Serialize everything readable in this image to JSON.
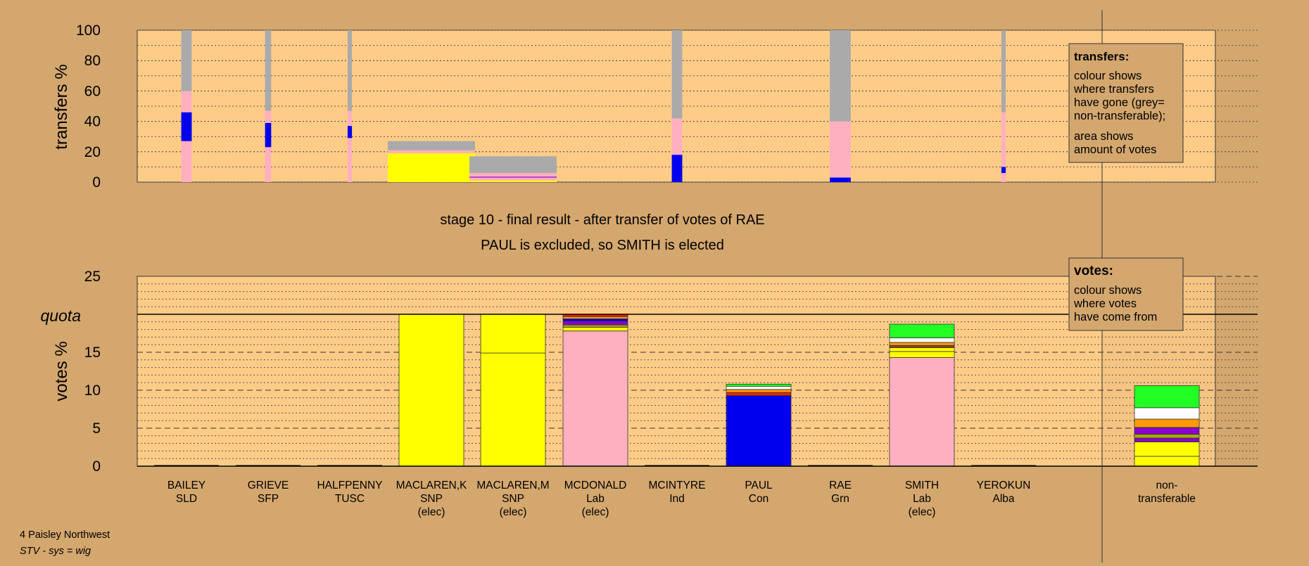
{
  "colors": {
    "background": "#d4a76e",
    "panel": "#ffcc88",
    "grey": "#aaaaaa",
    "pink": "#ffb0c0",
    "blue": "#0000ee",
    "yellow": "#ffff00",
    "green": "#22ff22",
    "white": "#ffffff",
    "orange": "#ff9900",
    "purple": "#8800cc",
    "olive": "#aaaa00",
    "red": "#ee2200",
    "brown": "#8b4513"
  },
  "header": {
    "stage_title": "stage 10 - final result - after transfer of votes of RAE",
    "stage_subtitle": "PAUL is excluded, so SMITH is elected"
  },
  "footer": {
    "ward": "4 Paisley Northwest",
    "system": "STV - sys = wig"
  },
  "legend_transfers": {
    "title": "transfers:",
    "lines1": [
      "colour shows",
      "where transfers",
      "have gone (grey=",
      "non-transferable);"
    ],
    "lines2": [
      "area shows",
      "amount of votes"
    ]
  },
  "legend_votes": {
    "title": "votes:",
    "lines": [
      "colour shows",
      "where votes",
      "have come from"
    ]
  },
  "candidates": [
    {
      "name": "BAILEY",
      "party": "SLD",
      "status": ""
    },
    {
      "name": "GRIEVE",
      "party": "SFP",
      "status": ""
    },
    {
      "name": "HALFPENNY",
      "party": "TUSC",
      "status": ""
    },
    {
      "name": "MACLAREN,K",
      "party": "SNP",
      "status": "(elec)"
    },
    {
      "name": "MACLAREN,M",
      "party": "SNP",
      "status": "(elec)"
    },
    {
      "name": "MCDONALD",
      "party": "Lab",
      "status": "(elec)"
    },
    {
      "name": "MCINTYRE",
      "party": "Ind",
      "status": ""
    },
    {
      "name": "PAUL",
      "party": "Con",
      "status": ""
    },
    {
      "name": "RAE",
      "party": "Grn",
      "status": ""
    },
    {
      "name": "SMITH",
      "party": "Lab",
      "status": "(elec)"
    },
    {
      "name": "YEROKUN",
      "party": "Alba",
      "status": ""
    },
    {
      "name": "non-",
      "party": "transferable",
      "status": ""
    }
  ],
  "chart_data": [
    {
      "type": "bar",
      "subtype": "stacked-transfer",
      "ylabel": "transfers %",
      "ylim": [
        0,
        100
      ],
      "yticks": [
        0,
        20,
        40,
        60,
        80,
        100
      ],
      "grid": true,
      "legend_position": "top-right",
      "bars": [
        {
          "candidate": "BAILEY",
          "width_share": 0.012,
          "segments": [
            {
              "color": "pink",
              "from": 0,
              "to": 27
            },
            {
              "color": "blue",
              "from": 27,
              "to": 46
            },
            {
              "color": "pink",
              "from": 46,
              "to": 60
            },
            {
              "color": "grey",
              "from": 60,
              "to": 100
            }
          ]
        },
        {
          "candidate": "GRIEVE",
          "width_share": 0.007,
          "segments": [
            {
              "color": "pink",
              "from": 0,
              "to": 23
            },
            {
              "color": "blue",
              "from": 23,
              "to": 39
            },
            {
              "color": "pink",
              "from": 39,
              "to": 47
            },
            {
              "color": "grey",
              "from": 47,
              "to": 100
            }
          ]
        },
        {
          "candidate": "HALFPENNY",
          "width_share": 0.005,
          "segments": [
            {
              "color": "pink",
              "from": 0,
              "to": 29
            },
            {
              "color": "blue",
              "from": 29,
              "to": 37
            },
            {
              "color": "pink",
              "from": 37,
              "to": 47
            },
            {
              "color": "grey",
              "from": 47,
              "to": 100
            }
          ]
        },
        {
          "candidate": "MACLAREN,K",
          "width_share": 0.1,
          "segments": [
            {
              "color": "yellow",
              "from": 0,
              "to": 19
            },
            {
              "color": "pink",
              "from": 19,
              "to": 21
            },
            {
              "color": "grey",
              "from": 21,
              "to": 27
            }
          ]
        },
        {
          "candidate": "MACLAREN,M",
          "width_share": 0.1,
          "segments": [
            {
              "color": "yellow",
              "from": 0,
              "to": 1
            },
            {
              "color": "pink",
              "from": 1,
              "to": 3
            },
            {
              "color": "purple",
              "from": 3,
              "to": 3.6
            },
            {
              "color": "pink",
              "from": 3.6,
              "to": 6
            },
            {
              "color": "grey",
              "from": 6,
              "to": 17
            }
          ]
        },
        {
          "candidate": "MCINTYRE",
          "width_share": 0.012,
          "segments": [
            {
              "color": "blue",
              "from": 0,
              "to": 18
            },
            {
              "color": "pink",
              "from": 18,
              "to": 42
            },
            {
              "color": "grey",
              "from": 42,
              "to": 100
            }
          ]
        },
        {
          "candidate": "RAE",
          "width_share": 0.024,
          "segments": [
            {
              "color": "blue",
              "from": 0,
              "to": 3
            },
            {
              "color": "pink",
              "from": 3,
              "to": 40
            },
            {
              "color": "grey",
              "from": 40,
              "to": 100
            }
          ]
        },
        {
          "candidate": "YEROKUN",
          "width_share": 0.005,
          "segments": [
            {
              "color": "pink",
              "from": 0,
              "to": 6
            },
            {
              "color": "blue",
              "from": 6,
              "to": 10
            },
            {
              "color": "pink",
              "from": 10,
              "to": 46
            },
            {
              "color": "grey",
              "from": 46,
              "to": 100
            }
          ]
        }
      ]
    },
    {
      "type": "bar",
      "subtype": "stacked-votes",
      "ylabel": "votes %",
      "ylim": [
        0,
        25
      ],
      "yticks": [
        0,
        5,
        10,
        15,
        20,
        25
      ],
      "quota": 20,
      "quota_label": "quota",
      "grid": true,
      "legend_position": "top-right",
      "bars": [
        {
          "candidate": "BAILEY",
          "segments": []
        },
        {
          "candidate": "GRIEVE",
          "segments": []
        },
        {
          "candidate": "HALFPENNY",
          "segments": []
        },
        {
          "candidate": "MACLAREN,K",
          "segments": [
            {
              "color": "yellow",
              "from": 0,
              "to": 20
            }
          ]
        },
        {
          "candidate": "MACLAREN,M",
          "segments": [
            {
              "color": "yellow",
              "from": 0,
              "to": 14.9
            },
            {
              "color": "yellow",
              "from": 14.9,
              "to": 20
            }
          ]
        },
        {
          "candidate": "MCDONALD",
          "segments": [
            {
              "color": "pink",
              "from": 0,
              "to": 17.8
            },
            {
              "color": "yellow",
              "from": 17.8,
              "to": 18.3
            },
            {
              "color": "olive",
              "from": 18.3,
              "to": 18.6
            },
            {
              "color": "purple",
              "from": 18.6,
              "to": 19.1
            },
            {
              "color": "blue",
              "from": 19.1,
              "to": 19.4
            },
            {
              "color": "orange",
              "from": 19.4,
              "to": 19.7
            },
            {
              "color": "red",
              "from": 19.7,
              "to": 20
            }
          ]
        },
        {
          "candidate": "MCINTYRE",
          "segments": []
        },
        {
          "candidate": "PAUL",
          "segments": [
            {
              "color": "blue",
              "from": 0,
              "to": 9.3
            },
            {
              "color": "red",
              "from": 9.3,
              "to": 9.7
            },
            {
              "color": "orange",
              "from": 9.7,
              "to": 10.1
            },
            {
              "color": "white",
              "from": 10.1,
              "to": 10.5
            },
            {
              "color": "green",
              "from": 10.5,
              "to": 10.8
            }
          ]
        },
        {
          "candidate": "RAE",
          "segments": []
        },
        {
          "candidate": "SMITH",
          "segments": [
            {
              "color": "pink",
              "from": 0,
              "to": 14.3
            },
            {
              "color": "yellow",
              "from": 14.3,
              "to": 15.1
            },
            {
              "color": "yellow",
              "from": 15.1,
              "to": 15.6
            },
            {
              "color": "brown",
              "from": 15.6,
              "to": 15.9
            },
            {
              "color": "orange",
              "from": 15.9,
              "to": 16.3
            },
            {
              "color": "white",
              "from": 16.3,
              "to": 16.9
            },
            {
              "color": "green",
              "from": 16.9,
              "to": 18.7
            }
          ]
        },
        {
          "candidate": "YEROKUN",
          "segments": []
        },
        {
          "candidate": "non-transferable",
          "segments": [
            {
              "color": "yellow",
              "from": 0,
              "to": 1.3
            },
            {
              "color": "yellow",
              "from": 1.3,
              "to": 3.2
            },
            {
              "color": "purple",
              "from": 3.2,
              "to": 3.7
            },
            {
              "color": "olive",
              "from": 3.7,
              "to": 4.2
            },
            {
              "color": "purple",
              "from": 4.2,
              "to": 5.1
            },
            {
              "color": "orange",
              "from": 5.1,
              "to": 6.2
            },
            {
              "color": "white",
              "from": 6.2,
              "to": 7.7
            },
            {
              "color": "green",
              "from": 7.7,
              "to": 10.6
            }
          ]
        }
      ]
    }
  ]
}
